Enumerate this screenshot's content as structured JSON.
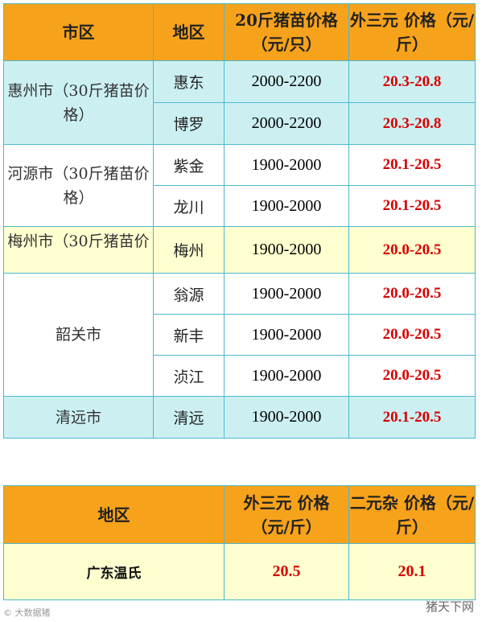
{
  "table1": {
    "headers": [
      "市区",
      "地区",
      "20斤猪苗价格（元/只）",
      "外三元 价格（元/斤）"
    ],
    "rows": [
      {
        "city": "惠州市（30斤猪苗价格）",
        "district": "惠东",
        "piglet": "2000-2200",
        "price": "20.3-20.8"
      },
      {
        "city": "",
        "district": "博罗",
        "piglet": "2000-2200",
        "price": "20.3-20.8"
      },
      {
        "city": "河源市（30斤猪苗价格）",
        "district": "紫金",
        "piglet": "1900-2000",
        "price": "20.1-20.5"
      },
      {
        "city": "",
        "district": "龙川",
        "piglet": "1900-2000",
        "price": "20.1-20.5"
      },
      {
        "city": "梅州市（30斤猪苗价",
        "district": "梅州",
        "piglet": "1900-2000",
        "price": "20.0-20.5"
      },
      {
        "city": "韶关市",
        "district": "翁源",
        "piglet": "1900-2000",
        "price": "20.0-20.5"
      },
      {
        "city": "",
        "district": "新丰",
        "piglet": "1900-2000",
        "price": "20.0-20.5"
      },
      {
        "city": "",
        "district": "浈江",
        "piglet": "1900-2000",
        "price": "20.0-20.5"
      },
      {
        "city": "清远市",
        "district": "清远",
        "piglet": "1900-2000",
        "price": "20.1-20.5"
      }
    ]
  },
  "table2": {
    "headers": [
      "地区",
      "外三元 价格（元/斤）",
      "二元杂 价格（元/斤）"
    ],
    "row": {
      "region": "广东温氏",
      "wai_san_yuan": "20.5",
      "er_yuan_za": "20.1"
    }
  },
  "footer": {
    "left": "© 大数据猪",
    "right": "猪天下网"
  },
  "colors": {
    "header": "#f7a21b",
    "cyan": "#ccf0f2",
    "yellow": "#ffffd0",
    "price_red": "#d90000",
    "border": "#4bb8cf"
  }
}
